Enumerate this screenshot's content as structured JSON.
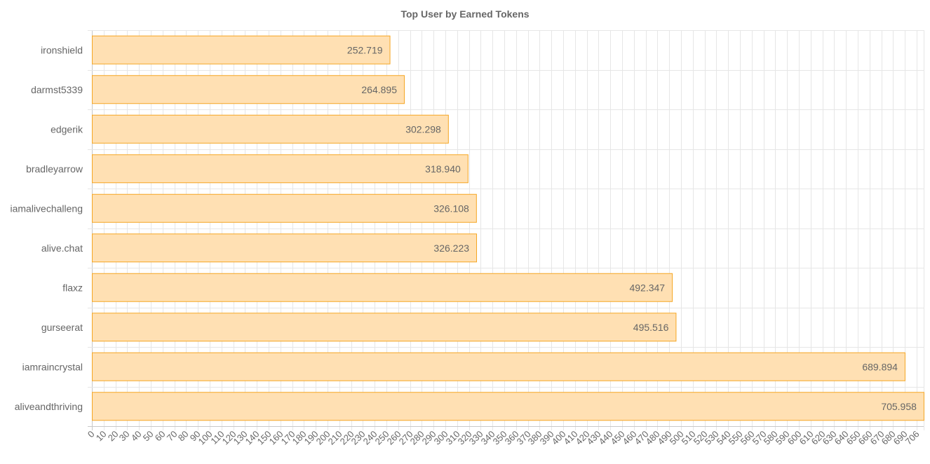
{
  "chart_data": {
    "type": "bar",
    "orientation": "horizontal",
    "title": "Top User by Earned Tokens",
    "categories": [
      "ironshield",
      "darmst5339",
      "edgerik",
      "bradleyarrow",
      "iamalivechalleng",
      "alive.chat",
      "flaxz",
      "gurseerat",
      "iamraincrystal",
      "aliveandthriving"
    ],
    "values": [
      252.719,
      264.895,
      302.298,
      318.94,
      326.108,
      326.223,
      492.347,
      495.516,
      689.894,
      705.958
    ],
    "value_labels": [
      "252.719",
      "264.895",
      "302.298",
      "318.940",
      "326.108",
      "326.223",
      "492.347",
      "495.516",
      "689.894",
      "705.958"
    ],
    "xlim": [
      0,
      706
    ],
    "x_tick_step": 10,
    "x_tick_labels": [
      "0",
      "10",
      "20",
      "30",
      "40",
      "50",
      "60",
      "70",
      "80",
      "90",
      "100",
      "110",
      "120",
      "130",
      "140",
      "150",
      "160",
      "170",
      "180",
      "190",
      "200",
      "210",
      "220",
      "230",
      "240",
      "250",
      "260",
      "270",
      "280",
      "290",
      "300",
      "310",
      "320",
      "330",
      "340",
      "350",
      "360",
      "370",
      "380",
      "390",
      "400",
      "410",
      "420",
      "430",
      "440",
      "450",
      "460",
      "470",
      "480",
      "490",
      "500",
      "510",
      "520",
      "530",
      "540",
      "550",
      "560",
      "570",
      "580",
      "590",
      "600",
      "610",
      "620",
      "630",
      "640",
      "650",
      "660",
      "670",
      "680",
      "690",
      "706"
    ],
    "grid": true,
    "legend": "none",
    "bar_fill": "#ffe0b3",
    "bar_stroke": "#f5a623"
  }
}
